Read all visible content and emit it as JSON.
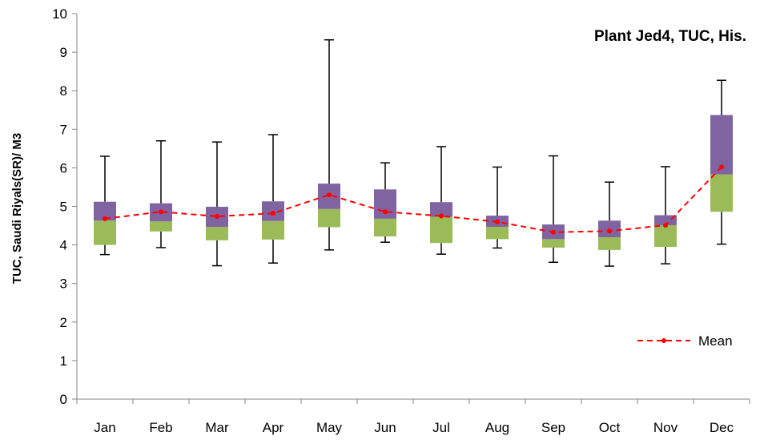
{
  "chart_data": {
    "type": "box",
    "title": "Plant Jed4, TUC, His.",
    "xlabel": "",
    "ylabel": "TUC, Saudi Riyals(SR)/ M3",
    "ylim": [
      0,
      10
    ],
    "yticks": [
      "0",
      "1",
      "2",
      "3",
      "4",
      "5",
      "6",
      "7",
      "8",
      "9",
      "10"
    ],
    "categories": [
      "Jan",
      "Feb",
      "Mar",
      "Apr",
      "May",
      "Jun",
      "Jul",
      "Aug",
      "Sep",
      "Oct",
      "Nov",
      "Dec"
    ],
    "min": [
      3.75,
      3.93,
      3.46,
      3.53,
      3.87,
      4.07,
      3.76,
      3.92,
      3.55,
      3.45,
      3.51,
      4.02
    ],
    "q1": [
      4.0,
      4.35,
      4.12,
      4.14,
      4.46,
      4.22,
      4.05,
      4.15,
      3.93,
      3.87,
      3.95,
      4.86
    ],
    "median": [
      4.63,
      4.61,
      4.47,
      4.62,
      4.93,
      4.68,
      4.73,
      4.47,
      4.15,
      4.2,
      4.51,
      5.83
    ],
    "q3": [
      5.12,
      5.08,
      4.99,
      5.13,
      5.59,
      5.44,
      5.11,
      4.76,
      4.53,
      4.63,
      4.77,
      7.37
    ],
    "max": [
      6.3,
      6.7,
      6.67,
      6.86,
      9.32,
      6.13,
      6.55,
      6.02,
      6.31,
      5.63,
      6.03,
      8.27
    ],
    "series": [
      {
        "name": "Mean",
        "values": [
          4.68,
          4.86,
          4.74,
          4.82,
          5.3,
          4.86,
          4.75,
          4.6,
          4.33,
          4.36,
          4.51,
          6.02
        ]
      }
    ],
    "grid": false,
    "legend": "bottom-right",
    "colors": {
      "lower_box": "#9bbb59",
      "upper_box": "#8064a2",
      "mean": "#ff0000",
      "whisker": "#000000"
    }
  }
}
